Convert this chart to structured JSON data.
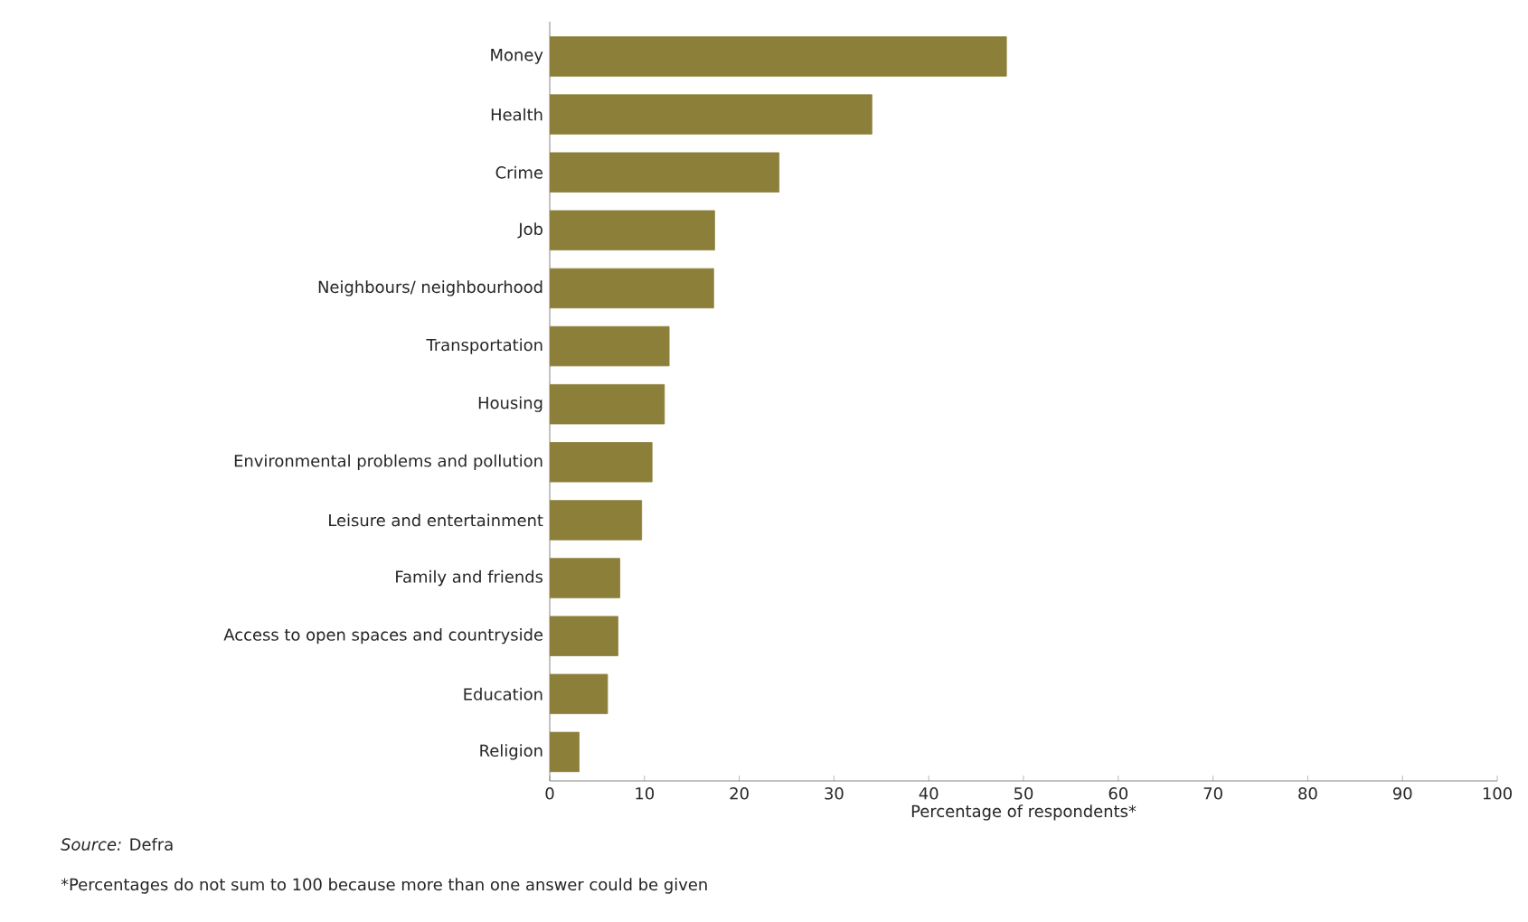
{
  "chart_data": {
    "type": "bar",
    "orientation": "horizontal",
    "categories": [
      "Money",
      "Health",
      "Crime",
      "Job",
      "Neighbours/ neighbourhood",
      "Transportation",
      "Housing",
      "Environmental problems and pollution",
      "Leisure and entertainment",
      "Family and friends",
      "Access to open spaces and countryside",
      "Education",
      "Religion"
    ],
    "values": [
      48.2,
      34.0,
      24.2,
      17.4,
      17.3,
      12.6,
      12.1,
      10.8,
      9.7,
      7.4,
      7.2,
      6.1,
      3.1
    ],
    "color": "#8b7f3a",
    "xlabel": "Percentage of respondents*",
    "xlim": [
      0,
      100
    ],
    "xticks": [
      0,
      10,
      20,
      30,
      40,
      50,
      60,
      70,
      80,
      90,
      100
    ],
    "grid": false,
    "annotations": [
      "*Source:* Defra",
      "*Percentages do not sum to 100 because more than one answer could be given"
    ]
  }
}
